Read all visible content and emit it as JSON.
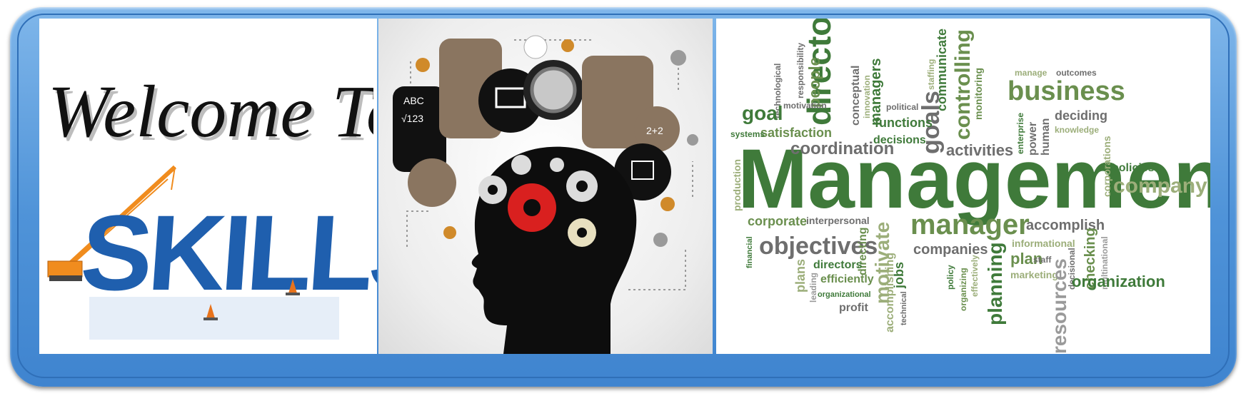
{
  "banner": {
    "welcome_text": "Welcome To",
    "skills_text": "SKILLS",
    "word_cloud": {
      "main": "Management",
      "words": [
        "director",
        "managers",
        "goals",
        "controlling",
        "communicate",
        "staffing",
        "people",
        "responsibility",
        "technological",
        "goal",
        "motivation",
        "satisfaction",
        "systems",
        "conceptual",
        "innovation",
        "political",
        "functions",
        "decisions",
        "coordination",
        "activities",
        "monitoring",
        "enterprise",
        "power",
        "human",
        "business",
        "manage",
        "outcomes",
        "deciding",
        "knowledge",
        "corporations",
        "policies",
        "company",
        "production",
        "corporate",
        "interpersonal",
        "manager",
        "accomplish",
        "objectives",
        "financial",
        "directing",
        "motivate",
        "companies",
        "jobs",
        "informational",
        "plan",
        "staff",
        "checking",
        "decisional",
        "multinational",
        "directors",
        "plans",
        "leading",
        "efficiently",
        "organizational",
        "accomplishing",
        "technical",
        "policy",
        "organizing",
        "effectively",
        "planning",
        "marketing",
        "resources",
        "organization",
        "profit"
      ]
    },
    "colors": {
      "frame": "#4f93d8",
      "cloud_dark": "#3f7a3a",
      "cloud_mid": "#6a8f4e",
      "cloud_light": "#9cae7a",
      "cloud_gray": "#6e6e6e",
      "skills_blue": "#2f6db5",
      "gear_red": "#d9201f"
    }
  }
}
